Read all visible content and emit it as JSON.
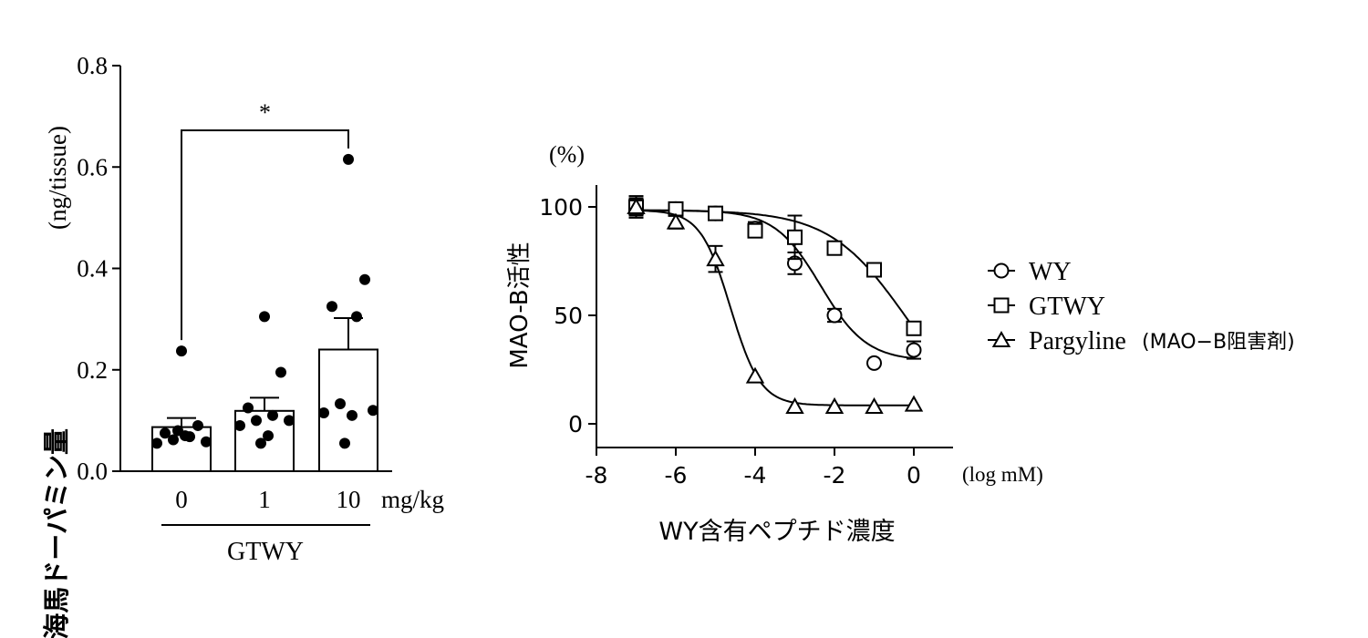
{
  "chart_data": [
    {
      "type": "bar",
      "ylabel": "海馬ドーパミン量 (ng/tissue)",
      "ylabel_main": "海馬ドーパミン量",
      "ylabel_unit": "(ng/tissue)",
      "ylim": [
        0,
        0.8
      ],
      "yticks": [
        "0.0",
        "0.2",
        "0.4",
        "0.6",
        "0.8"
      ],
      "categories": [
        "0",
        "1",
        "10"
      ],
      "x_unit": "mg/kg",
      "group_label": "GTWY",
      "values": [
        0.087,
        0.119,
        0.24
      ],
      "sem": [
        0.018,
        0.026,
        0.062
      ],
      "points": [
        [
          0.237,
          0.09,
          0.075,
          0.068,
          0.062,
          0.058,
          0.055,
          0.07,
          0.08
        ],
        [
          0.305,
          0.195,
          0.125,
          0.11,
          0.1,
          0.1,
          0.09,
          0.07,
          0.055
        ],
        [
          0.615,
          0.378,
          0.325,
          0.305,
          0.133,
          0.12,
          0.115,
          0.11,
          0.055
        ]
      ],
      "significance": {
        "from": "0",
        "to": "10",
        "label": "*"
      }
    },
    {
      "type": "line",
      "unit_label": "(%)",
      "ylabel": "MAO-B活性",
      "xlabel": "WY含有ペプチド濃度",
      "x_unit": "(log mM)",
      "xlim": [
        -8,
        1
      ],
      "ylim": [
        -10,
        110
      ],
      "xticks": [
        "-8",
        "-6",
        "-4",
        "-2",
        "0"
      ],
      "yticks": [
        "0",
        "50",
        "100"
      ],
      "series": [
        {
          "name": "WY",
          "marker": "circle",
          "x": [
            -7,
            -6,
            -5,
            -4,
            -3,
            -2,
            -1,
            0
          ],
          "y": [
            100,
            99,
            97,
            90,
            74,
            50,
            28,
            34
          ],
          "err": [
            4,
            3,
            3,
            3,
            5,
            3,
            0,
            4
          ],
          "curve": {
            "top": 98.5,
            "bottom": 29,
            "log_ic50": -2.35,
            "hill": 0.75
          }
        },
        {
          "name": "GTWY",
          "marker": "square",
          "x": [
            -7,
            -6,
            -5,
            -4,
            -3,
            -2,
            -1,
            0
          ],
          "y": [
            100,
            99,
            97,
            89,
            86,
            81,
            71,
            44
          ],
          "err": [
            5,
            3,
            3,
            3,
            10,
            2,
            0,
            3
          ],
          "curve": {
            "top": 98.5,
            "bottom": 0,
            "log_ic50": -0.2,
            "hill": 0.45
          }
        },
        {
          "name": "Pargyline",
          "legend_suffix": "(MAO−B阻害剤)",
          "marker": "triangle",
          "x": [
            -7,
            -6,
            -5,
            -4,
            -3,
            -2,
            -1,
            0
          ],
          "y": [
            100,
            93,
            76,
            22,
            8,
            8,
            8,
            9
          ],
          "err": [
            3,
            3,
            6,
            0,
            0,
            0,
            0,
            0
          ],
          "curve": {
            "top": 98.5,
            "bottom": 8.5,
            "log_ic50": -4.62,
            "hill": 1.15
          }
        }
      ]
    }
  ]
}
